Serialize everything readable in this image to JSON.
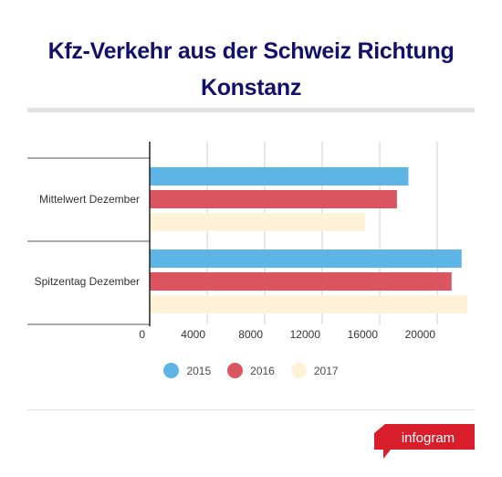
{
  "title_line1": "Kfz-Verkehr aus der Schweiz Richtung",
  "title_line2": "Konstanz",
  "brand_label": "infogram",
  "colors": {
    "title": "#13106b",
    "series": [
      "#5db5e6",
      "#db5560",
      "#fdf2d5"
    ],
    "brand": "#d81e2a"
  },
  "chart_data": {
    "type": "bar",
    "orientation": "horizontal",
    "categories": [
      "Mittelwert Dezember",
      "Spitzentag Dezember"
    ],
    "series": [
      {
        "name": "2015",
        "values": [
          18000,
          21700
        ]
      },
      {
        "name": "2016",
        "values": [
          17200,
          21000
        ]
      },
      {
        "name": "2017",
        "values": [
          15000,
          22100
        ]
      }
    ],
    "x_ticks": [
      "0",
      "4000",
      "8000",
      "12000",
      "16000",
      "20000"
    ],
    "xlim": [
      0,
      22400
    ],
    "grid": true,
    "legend_position": "bottom"
  }
}
